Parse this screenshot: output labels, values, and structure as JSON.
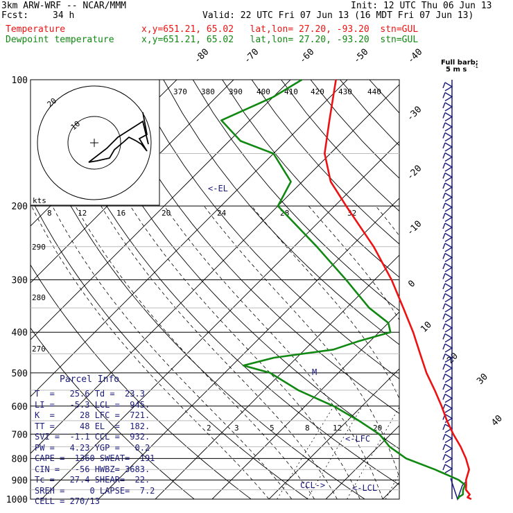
{
  "header": {
    "model": "3km ARW-WRF -- NCAR/MMM",
    "init": "Init: 12 UTC Thu 06 Jun 13",
    "fcst_label": "Fcst:",
    "fcst_value": "34 h",
    "valid": "Valid: 22 UTC Fri 07 Jun 13 (16 MDT Fri 07 Jun 13)",
    "temp_label": "Temperature",
    "dew_label": "Dewpoint temperature",
    "temp_loc": "x,y=651.21, 65.02   lat,lon= 27.20, -93.20  stn=GUL",
    "dew_loc": "x,y=651.21, 65.02   lat,lon= 27.20, -93.20  stn=GUL"
  },
  "colors": {
    "temperature": "#ee1111",
    "dewpoint": "#118811",
    "navy": "#1a1a7a"
  },
  "barb_legend": {
    "line1": "Full barb:",
    "line2": "5 m s",
    "exp": "-1"
  },
  "pressure_labels": [
    "100",
    "200",
    "300",
    "400",
    "500",
    "600",
    "700",
    "800",
    "900",
    "1000"
  ],
  "isotherm_labels": [
    "-80",
    "-70",
    "-60",
    "-50",
    "-40",
    "-30",
    "-20",
    "-10",
    "0",
    "10",
    "20",
    "30",
    "40"
  ],
  "theta_labels": [
    "370",
    "380",
    "390",
    "400",
    "410",
    "420",
    "430",
    "440",
    "290",
    "280",
    "270"
  ],
  "mixing_ratio_labels": [
    "2",
    "3",
    "5",
    "8",
    "12",
    "20"
  ],
  "annotations": {
    "el": "<-EL",
    "lfc": "<-LFC",
    "ccl": "CCL->",
    "lcl": "<-LCL",
    "kts": "kts"
  },
  "hodograph": {
    "rings": [
      "10",
      "20"
    ],
    "speed_ticks": [
      "8",
      "12",
      "16",
      "20",
      "24",
      "28",
      "32"
    ]
  },
  "parcel_info": {
    "title": "Parcel Info",
    "rows": [
      "T  =   25.6 Td =  23.3",
      "LI =   -5.3 LCL =  945.",
      "K  =     28 LFC =  721.",
      "TT =     48 EL  =  182.",
      "SVI =  -1.1 CCL =  932.",
      "PW =   4.23 YGP =   0.2",
      "CAPE =  1360 SWEAT=  191",
      "CIN =   -56 HWBZ= 3683.",
      "Tc =   27.4 SHEAR=  22.",
      "SREH =     0 LAPSE=  7.2",
      "CELL = 270/13"
    ]
  },
  "chart_data": {
    "type": "line",
    "title": "",
    "xlabel": "",
    "ylabel": "",
    "y_axis": "pressure (hPa), log scale",
    "ylim": [
      1000,
      100
    ],
    "series": [
      {
        "name": "Temperature",
        "color": "#ee1111",
        "points": [
          [
            1000,
            25.6
          ],
          [
            990,
            24.6
          ],
          [
            975,
            24.5
          ],
          [
            950,
            23.0
          ],
          [
            925,
            22.2
          ],
          [
            900,
            21.3
          ],
          [
            850,
            20.0
          ],
          [
            800,
            17.5
          ],
          [
            750,
            14.5
          ],
          [
            700,
            11.0
          ],
          [
            650,
            7.5
          ],
          [
            600,
            4.0
          ],
          [
            550,
            0.0
          ],
          [
            500,
            -4.5
          ],
          [
            450,
            -9.0
          ],
          [
            400,
            -14.0
          ],
          [
            350,
            -20.0
          ],
          [
            300,
            -27.0
          ],
          [
            250,
            -36.0
          ],
          [
            200,
            -48.0
          ],
          [
            175,
            -55.0
          ],
          [
            150,
            -61.0
          ],
          [
            125,
            -66.0
          ],
          [
            100,
            -72.0
          ]
        ]
      },
      {
        "name": "Dewpoint temperature",
        "color": "#118811",
        "points": [
          [
            1000,
            23.3
          ],
          [
            990,
            23.0
          ],
          [
            975,
            23.3
          ],
          [
            950,
            22.5
          ],
          [
            925,
            22.0
          ],
          [
            900,
            20.0
          ],
          [
            850,
            14.0
          ],
          [
            800,
            7.0
          ],
          [
            750,
            2.0
          ],
          [
            700,
            -2.0
          ],
          [
            650,
            -8.0
          ],
          [
            600,
            -15.0
          ],
          [
            550,
            -24.0
          ],
          [
            500,
            -32.0
          ],
          [
            480,
            -38.0
          ],
          [
            460,
            -34.0
          ],
          [
            440,
            -25.0
          ],
          [
            420,
            -22.0
          ],
          [
            400,
            -18.0
          ],
          [
            380,
            -20.0
          ],
          [
            350,
            -26.0
          ],
          [
            300,
            -35.0
          ],
          [
            250,
            -46.0
          ],
          [
            200,
            -60.0
          ],
          [
            175,
            -62.0
          ],
          [
            150,
            -70.0
          ],
          [
            140,
            -78.0
          ],
          [
            125,
            -85.0
          ],
          [
            110,
            -80.0
          ],
          [
            100,
            -78.0
          ]
        ]
      }
    ]
  }
}
